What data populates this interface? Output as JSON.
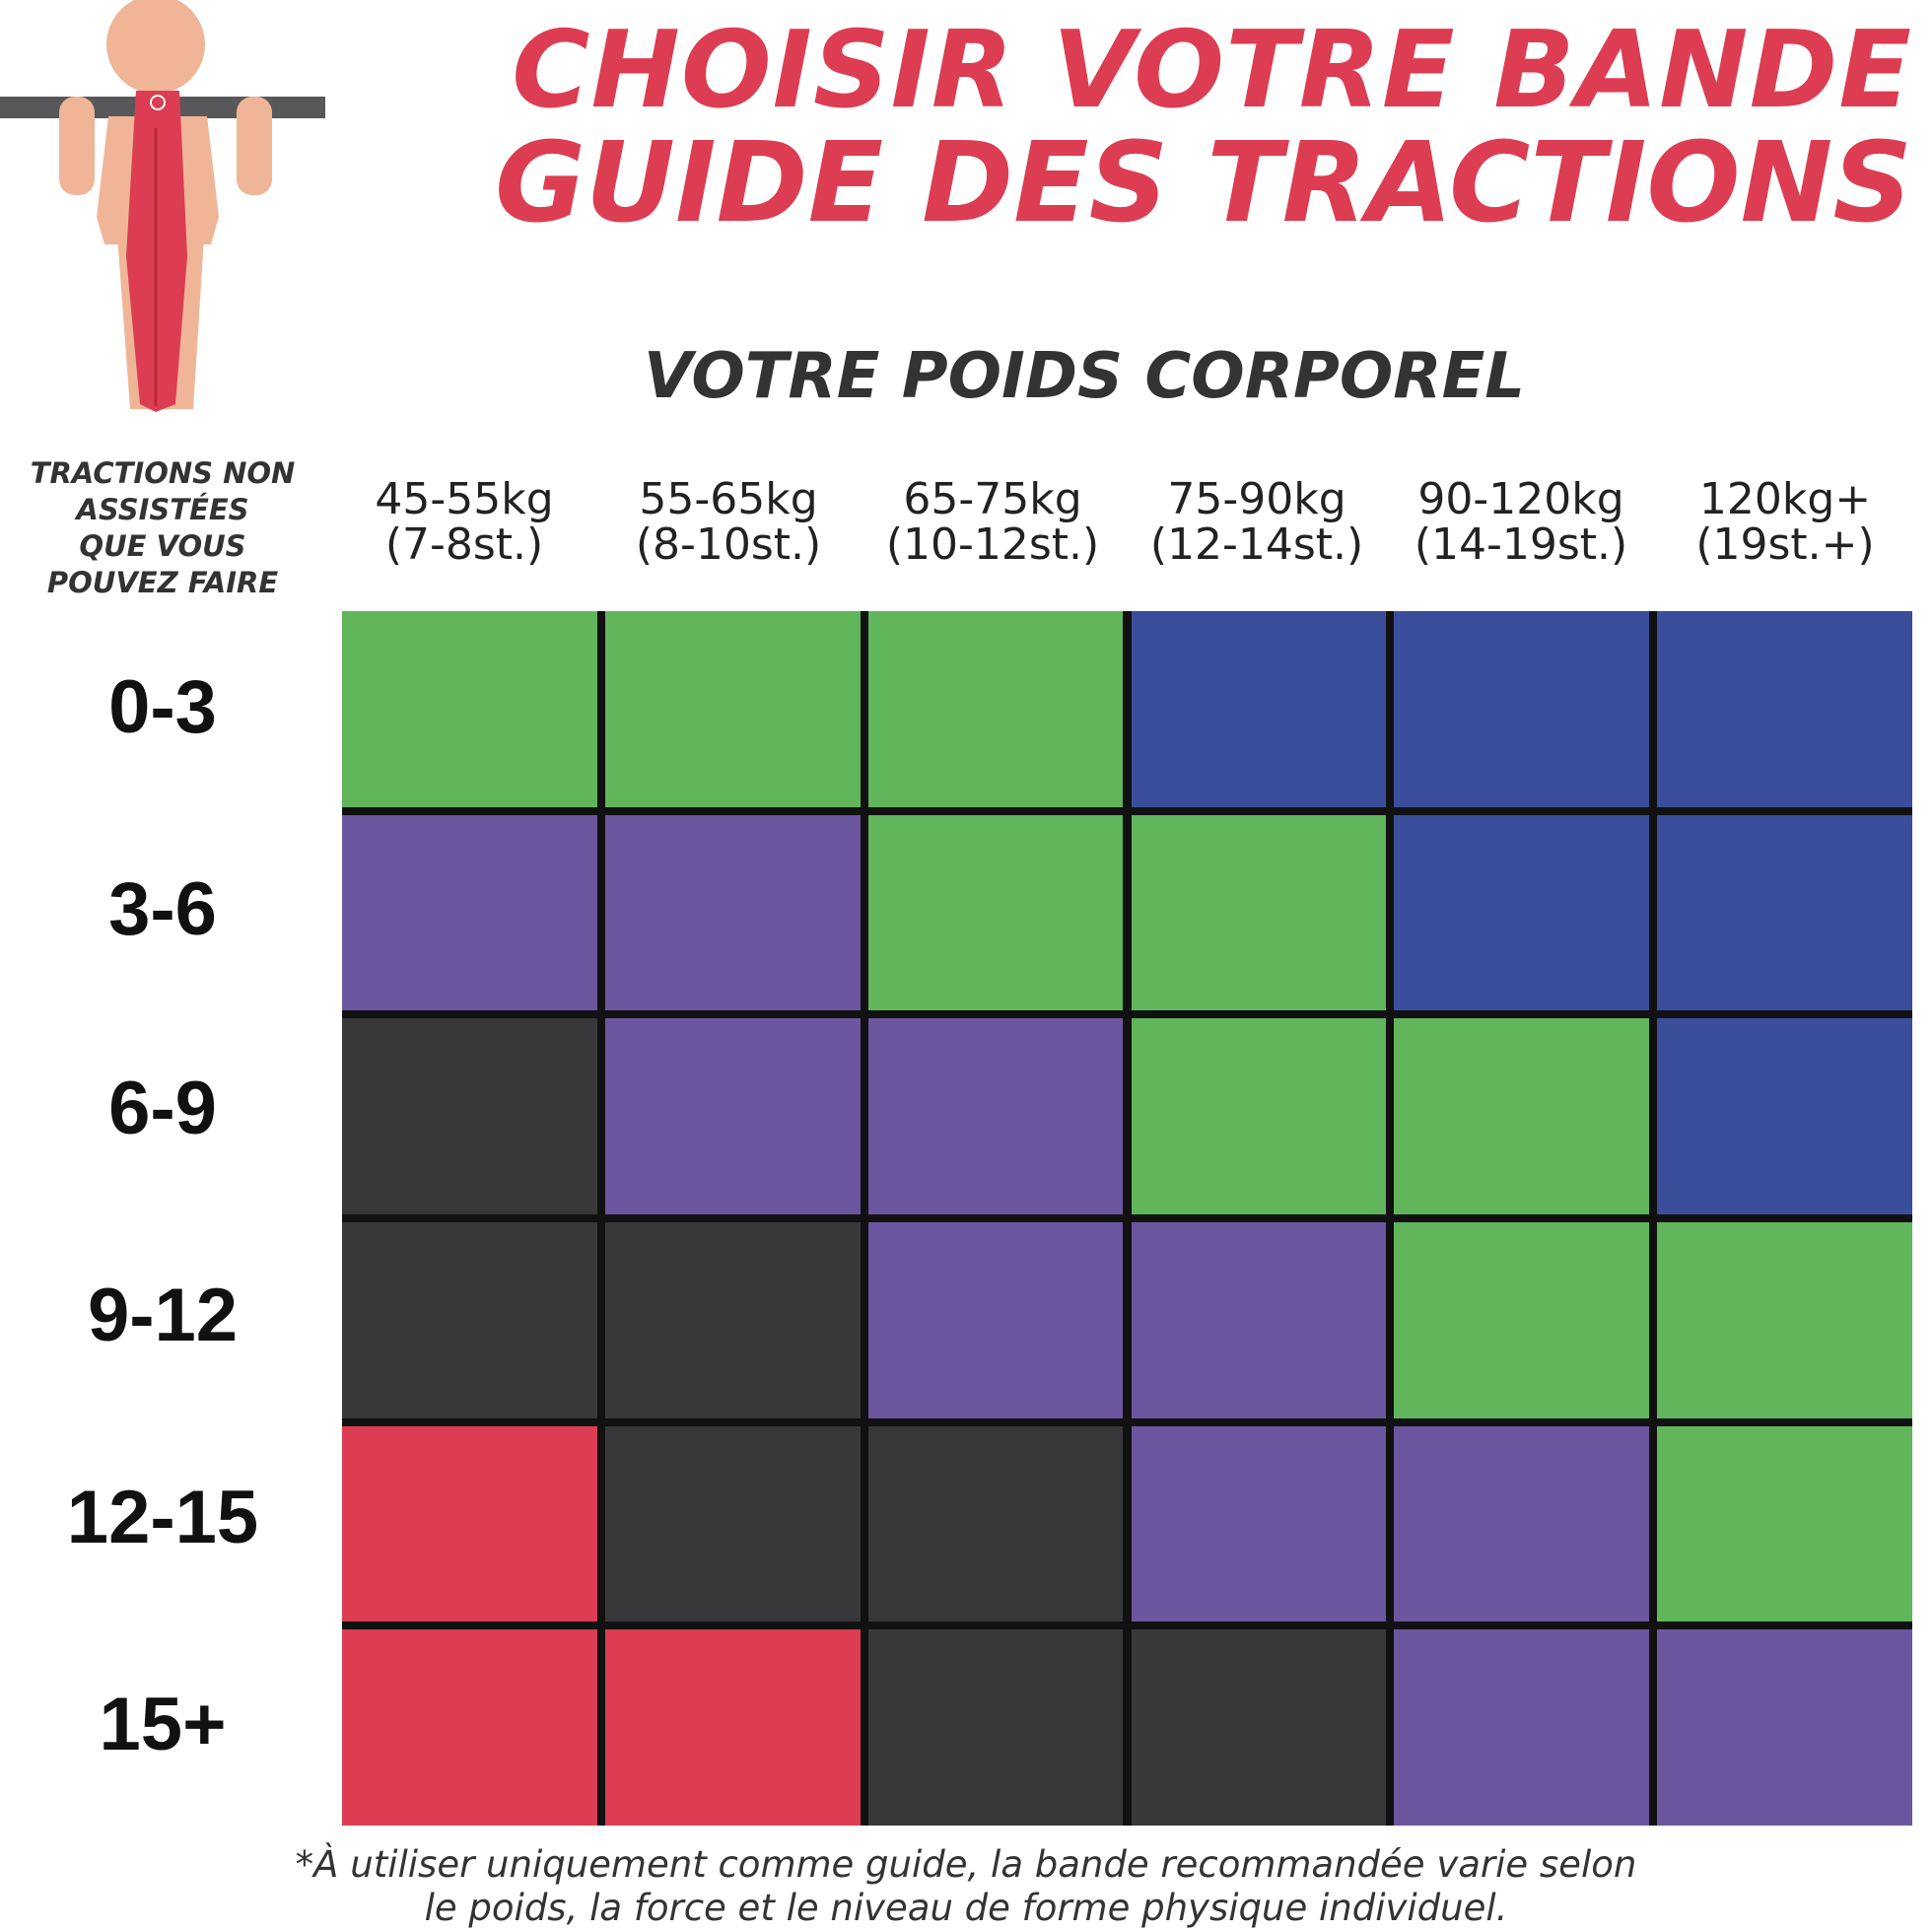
{
  "header": {
    "title_line1": "CHOISIR VOTRE BANDE",
    "title_line2": "GUIDE DES TRACTIONS",
    "subtitle": "VOTRE POIDS CORPOREL"
  },
  "rows_heading": {
    "lines": [
      "TRACTIONS NON",
      "ASSISTÉES",
      "QUE VOUS",
      "POUVEZ FAIRE"
    ]
  },
  "columns": [
    {
      "kg": "45-55kg",
      "st": "(7-8st.)"
    },
    {
      "kg": "55-65kg",
      "st": "(8-10st.)"
    },
    {
      "kg": "65-75kg",
      "st": "(10-12st.)"
    },
    {
      "kg": "75-90kg",
      "st": "(12-14st.)"
    },
    {
      "kg": "90-120kg",
      "st": "(14-19st.)"
    },
    {
      "kg": "120kg+",
      "st": "(19st.+)"
    }
  ],
  "rows": [
    "0-3",
    "3-6",
    "6-9",
    "9-12",
    "12-15",
    "15+"
  ],
  "band_colors": {
    "green": "#61b55b",
    "blue": "#3b4e9b",
    "purple": "#6b569f",
    "black": "#38383a",
    "red": "#dc3d52"
  },
  "grid": [
    [
      "green",
      "green",
      "green",
      "blue",
      "blue",
      "blue"
    ],
    [
      "purple",
      "purple",
      "green",
      "green",
      "blue",
      "blue"
    ],
    [
      "black",
      "purple",
      "purple",
      "green",
      "green",
      "blue"
    ],
    [
      "black",
      "black",
      "purple",
      "purple",
      "green",
      "green"
    ],
    [
      "red",
      "black",
      "black",
      "purple",
      "purple",
      "green"
    ],
    [
      "red",
      "red",
      "black",
      "black",
      "purple",
      "purple"
    ]
  ],
  "footnote": {
    "lines": [
      "*À utiliser uniquement comme guide, la bande recommandée varie selon",
      "le poids, la force et le niveau de forme physique individuel."
    ]
  },
  "colors": {
    "accent": "#dc3d52",
    "bar": "#58585a",
    "skin": "#f0b597"
  }
}
